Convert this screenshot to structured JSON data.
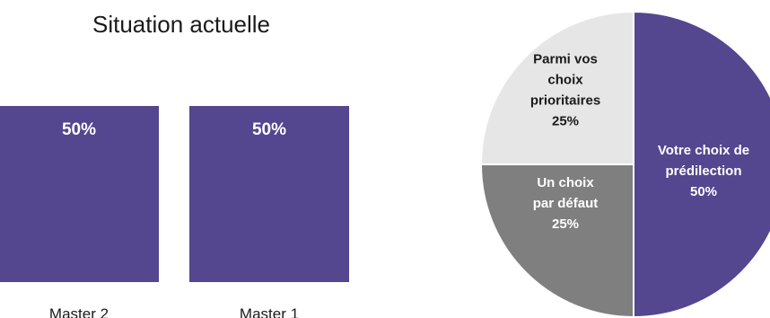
{
  "chart_data": [
    {
      "type": "bar",
      "title": "Situation actuelle",
      "categories": [
        "Master 2",
        "Master 1"
      ],
      "values": [
        50,
        50
      ],
      "data_labels": [
        "50%",
        "50%"
      ],
      "color": "#54468f",
      "label_color": "#ffffff"
    },
    {
      "type": "pie",
      "slices": [
        {
          "lines": [
            "Votre choix de",
            "prédilection",
            "50%"
          ],
          "value": 50,
          "color": "#54468f",
          "label_color": "#ffffff"
        },
        {
          "lines": [
            "Un choix",
            "par défaut",
            "25%"
          ],
          "value": 25,
          "color": "#7f7f7f",
          "label_color": "#ffffff"
        },
        {
          "lines": [
            "Parmi vos",
            "choix",
            "prioritaires",
            "25%"
          ],
          "value": 25,
          "color": "#e6e6e6",
          "label_color": "#1a1a1a"
        }
      ]
    }
  ]
}
